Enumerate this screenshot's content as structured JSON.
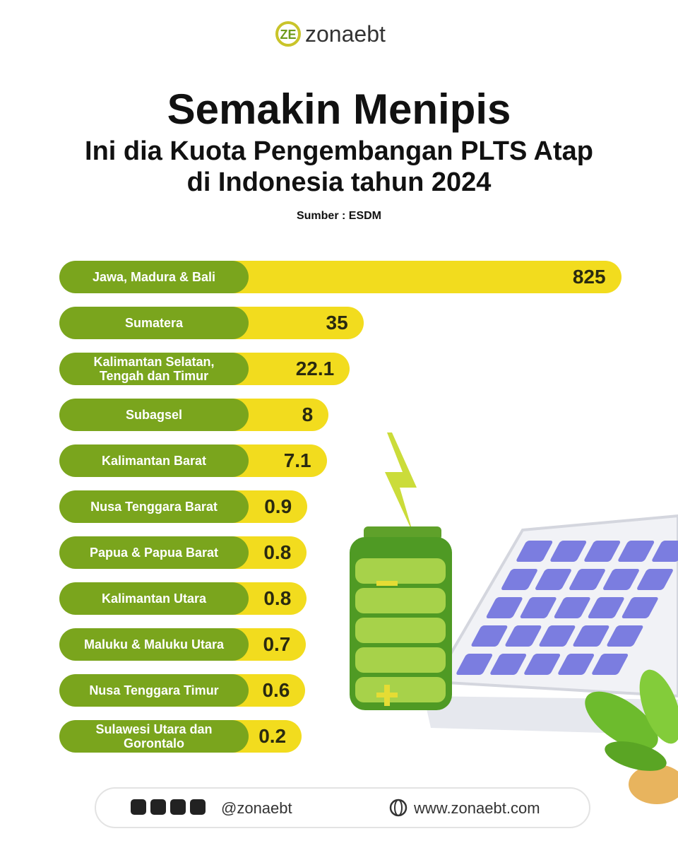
{
  "header": {
    "logo": "zonaebt"
  },
  "chart_data": {
    "type": "bar",
    "title": "Semakin Menipis",
    "subtitle": [
      "Ini dia Kuota Pengembangan PLTS Atap",
      "di Indonesia tahun 2024"
    ],
    "source": "Sumber : ESDM",
    "categories": [
      "Jawa, Madura & Bali",
      "Sumatera",
      "Kalimantan Selatan, Tengah dan Timur",
      "Subagsel",
      "Kalimantan Barat",
      "Nusa Tenggara Barat",
      "Papua & Papua Barat",
      "Kalimantan Utara",
      "Maluku & Maluku Utara",
      "Nusa Tenggara Timur",
      "Sulawesi Utara dan Gorontalo"
    ],
    "values": [
      825,
      35,
      22.1,
      8,
      7.1,
      0.9,
      0.8,
      0.8,
      0.7,
      0.6,
      0.2
    ],
    "color": "#f2dc1e",
    "label_color": "#7aa51d"
  },
  "footer": {
    "social": "@zonaebt",
    "website": "www.zonaebt.com"
  }
}
